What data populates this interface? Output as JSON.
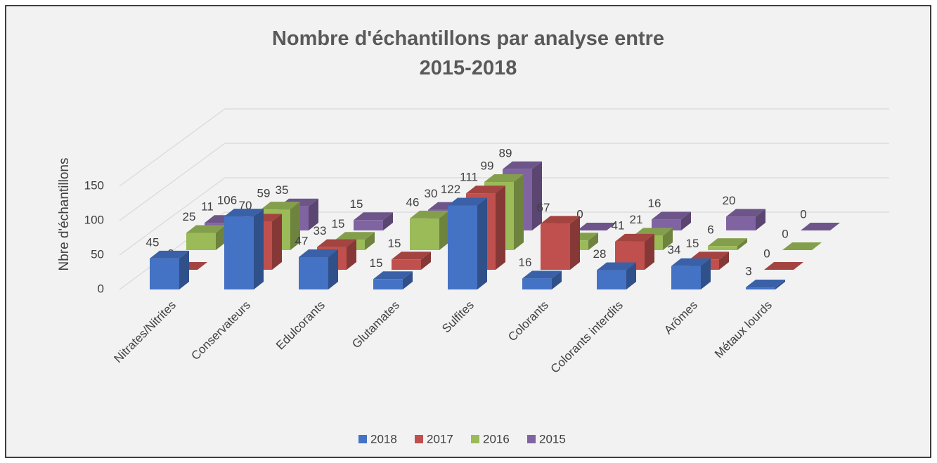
{
  "chart_data": {
    "type": "bar3d",
    "title": "Nombre d'échantillons par analyse entre 2015-2018",
    "y_label": "Nbre d'échantillons",
    "categories": [
      "Nitrates/Nitrites",
      "Conservateurs",
      "Edulcorants",
      "Glutamates",
      "Sulfites",
      "Colorants",
      "Colorants interdits",
      "Arômes",
      "Métaux lourds"
    ],
    "series": [
      {
        "name": "2018",
        "color": "#4472c4",
        "values": [
          45,
          106,
          47,
          15,
          122,
          16,
          28,
          34,
          3
        ]
      },
      {
        "name": "2017",
        "color": "#c0504d",
        "values": [
          0,
          70,
          33,
          15,
          111,
          67,
          41,
          15,
          0
        ]
      },
      {
        "name": "2016",
        "color": "#9bbb59",
        "values": [
          25,
          59,
          15,
          46,
          99,
          14,
          21,
          6,
          0
        ]
      },
      {
        "name": "2015",
        "color": "#8064a2",
        "values": [
          11,
          35,
          15,
          30,
          89,
          0,
          16,
          20,
          0
        ]
      }
    ],
    "ylim": [
      0,
      150
    ],
    "yticks": [
      0,
      50,
      100,
      150
    ],
    "grid": true,
    "legend": "bottom"
  }
}
